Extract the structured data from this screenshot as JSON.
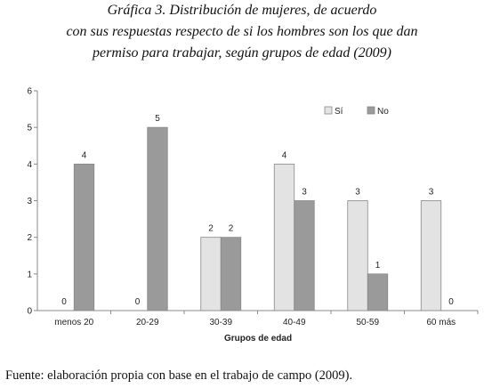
{
  "chart_data": {
    "type": "bar",
    "title": [
      "Gráfica 3. Distribución de mujeres, de acuerdo",
      "con sus respuestas respecto de si los hombres son los que dan",
      "permiso para trabajar, según grupos de edad (2009)"
    ],
    "x_label": "Grupos de edad",
    "categories": [
      "menos 20",
      "20-29",
      "30-39",
      "40-49",
      "50-59",
      "60 más"
    ],
    "series": [
      {
        "name": "Sí",
        "color": "#e3e3e3",
        "values": [
          0,
          0,
          2,
          4,
          3,
          3
        ]
      },
      {
        "name": "No",
        "color": "#9a9a9a",
        "values": [
          4,
          5,
          2,
          3,
          1,
          0
        ]
      }
    ],
    "ylim": [
      0,
      6
    ],
    "yticks": [
      0,
      1,
      2,
      3,
      4,
      5,
      6
    ],
    "grid": false,
    "legend": "top-right"
  },
  "source": "Fuente: elaboración propia con base en el trabajo de campo (2009)."
}
